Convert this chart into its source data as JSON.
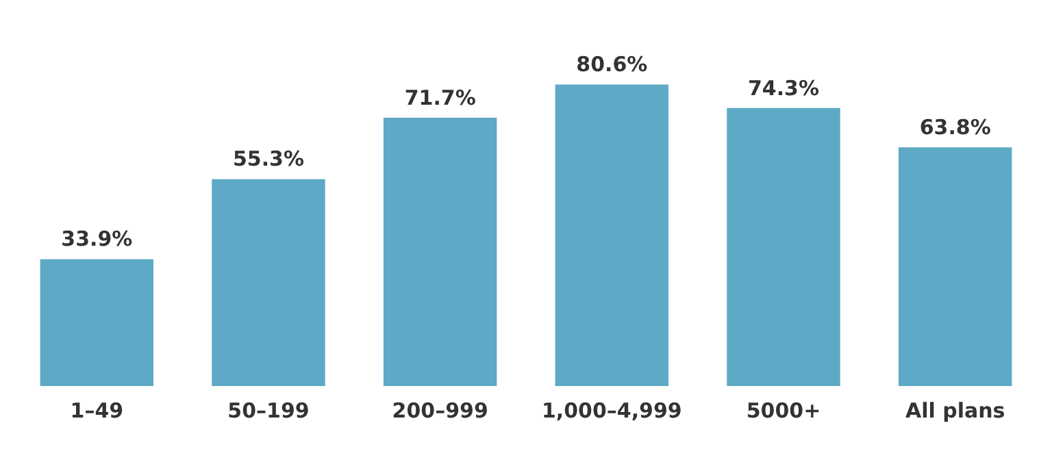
{
  "chart_data": {
    "type": "bar",
    "categories": [
      "1–49",
      "50–199",
      "200–999",
      "1,000–4,999",
      "5000+",
      "All plans"
    ],
    "values": [
      33.9,
      55.3,
      71.7,
      80.6,
      74.3,
      63.8
    ],
    "value_labels": [
      "33.9%",
      "55.3%",
      "71.7%",
      "80.6%",
      "74.3%",
      "63.8%"
    ],
    "color": "#5ea9c5",
    "grid": false,
    "legend": false,
    "tick_labels": "x"
  }
}
